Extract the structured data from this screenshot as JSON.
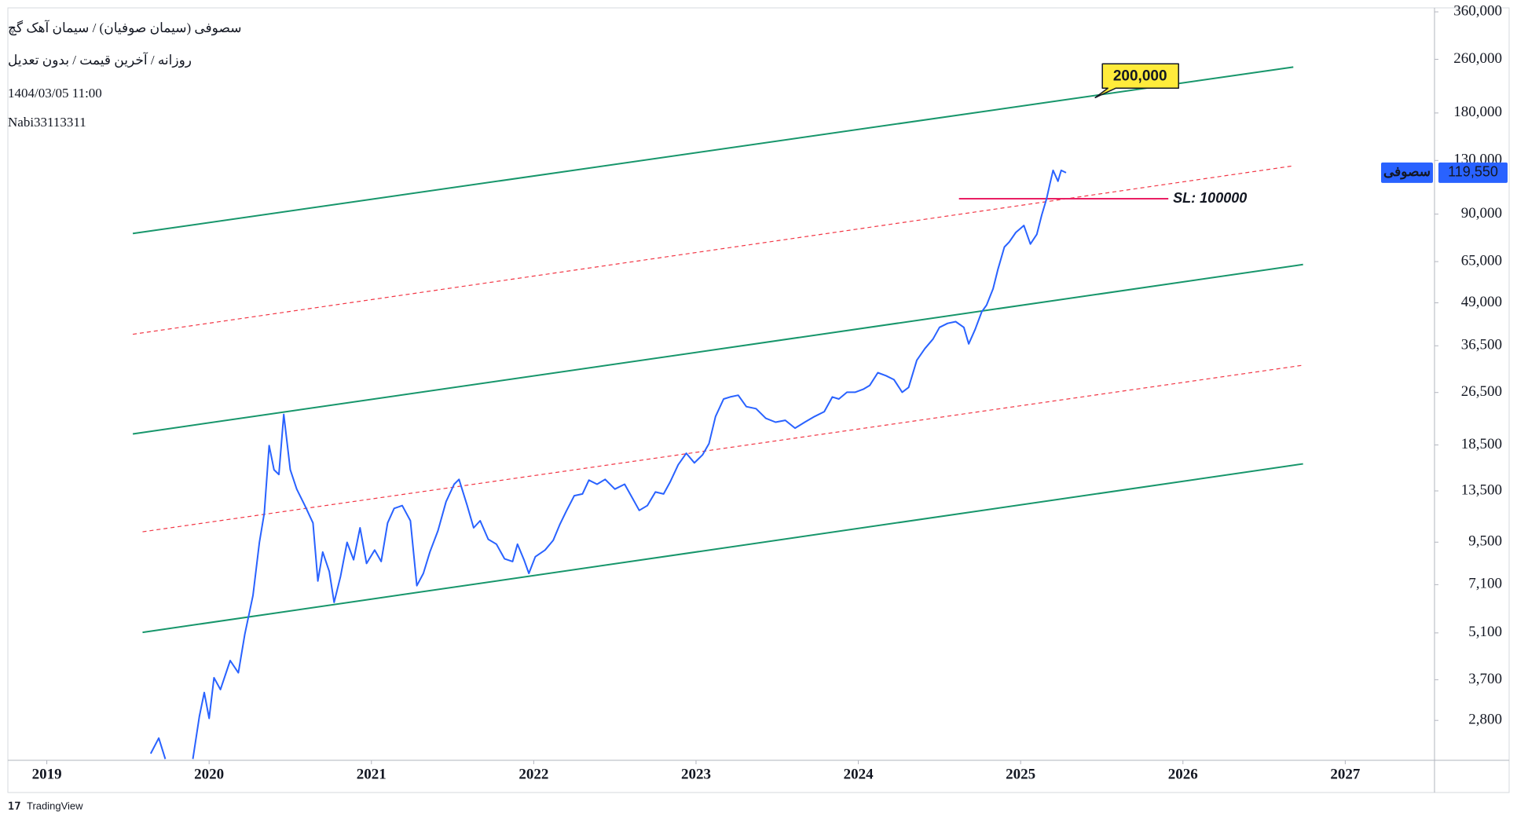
{
  "chart_data": {
    "type": "line",
    "title": "سصوفی (سیمان صوفیان) / سیمان آهک گچ",
    "subtitle": "روزانه / آخرین قیمت / بدون تعدیل",
    "timestamp": "1404/03/05 11:00",
    "author": "Nabi33113311",
    "footer": "TradingView",
    "log_scale": true,
    "grid": false,
    "xlim": [
      2018.76,
      2027.55
    ],
    "xticks": [
      2019,
      2020,
      2021,
      2022,
      2023,
      2024,
      2025,
      2026,
      2027
    ],
    "ylim": [
      2130,
      370000
    ],
    "yticks": [
      {
        "value": 2800,
        "label": "2,800"
      },
      {
        "value": 3700,
        "label": "3,700"
      },
      {
        "value": 5100,
        "label": "5,100"
      },
      {
        "value": 7100,
        "label": "7,100"
      },
      {
        "value": 9500,
        "label": "9,500"
      },
      {
        "value": 13500,
        "label": "13,500"
      },
      {
        "value": 18500,
        "label": "18,500"
      },
      {
        "value": 26500,
        "label": "26,500"
      },
      {
        "value": 36500,
        "label": "36,500"
      },
      {
        "value": 49000,
        "label": "49,000"
      },
      {
        "value": 65000,
        "label": "65,000"
      },
      {
        "value": 90000,
        "label": "90,000"
      },
      {
        "value": 130000,
        "label": "130,000"
      },
      {
        "value": 180000,
        "label": "180,000"
      },
      {
        "value": 260000,
        "label": "260,000"
      },
      {
        "value": 360000,
        "label": "360,000"
      }
    ],
    "series": [
      {
        "name": "سصوفی",
        "color": "#2962ff",
        "last_value_label": "119,550",
        "x": [
          2019.64,
          2019.69,
          2019.73,
          2019.8,
          2019.9,
          2019.94,
          2019.97,
          2020.0,
          2020.03,
          2020.07,
          2020.13,
          2020.18,
          2020.22,
          2020.27,
          2020.31,
          2020.34,
          2020.37,
          2020.4,
          2020.43,
          2020.46,
          2020.5,
          2020.54,
          2020.59,
          2020.64,
          2020.67,
          2020.7,
          2020.74,
          2020.77,
          2020.81,
          2020.85,
          2020.89,
          2020.93,
          2020.97,
          2021.02,
          2021.06,
          2021.1,
          2021.14,
          2021.19,
          2021.24,
          2021.28,
          2021.32,
          2021.36,
          2021.41,
          2021.46,
          2021.51,
          2021.54,
          2021.59,
          2021.63,
          2021.67,
          2021.72,
          2021.77,
          2021.82,
          2021.87,
          2021.9,
          2021.94,
          2021.97,
          2022.01,
          2022.07,
          2022.12,
          2022.16,
          2022.2,
          2022.25,
          2022.3,
          2022.34,
          2022.39,
          2022.44,
          2022.5,
          2022.56,
          2022.61,
          2022.65,
          2022.7,
          2022.75,
          2022.8,
          2022.84,
          2022.89,
          2022.94,
          2022.99,
          2023.04,
          2023.08,
          2023.12,
          2023.17,
          2023.21,
          2023.26,
          2023.31,
          2023.37,
          2023.43,
          2023.49,
          2023.55,
          2023.61,
          2023.67,
          2023.73,
          2023.79,
          2023.84,
          2023.88,
          2023.93,
          2023.98,
          2024.03,
          2024.07,
          2024.12,
          2024.17,
          2024.22,
          2024.27,
          2024.31,
          2024.36,
          2024.41,
          2024.46,
          2024.5,
          2024.55,
          2024.6,
          2024.65,
          2024.68,
          2024.72,
          2024.76,
          2024.79,
          2024.83,
          2024.86,
          2024.9,
          2024.93,
          2024.97,
          2025.02,
          2025.06,
          2025.1,
          2025.13,
          2025.16,
          2025.18,
          2025.2,
          2025.23,
          2025.25,
          2025.28
        ],
        "values": [
          2230,
          2480,
          2150,
          null,
          2150,
          2880,
          3390,
          2840,
          3750,
          3460,
          4220,
          3880,
          5050,
          6590,
          9490,
          11590,
          18420,
          15600,
          15110,
          22800,
          15600,
          13670,
          12210,
          10840,
          7280,
          8880,
          7780,
          6290,
          7520,
          9490,
          8420,
          10480,
          8210,
          9000,
          8320,
          10840,
          11970,
          12210,
          11000,
          7050,
          7670,
          8880,
          10280,
          12540,
          14130,
          14610,
          12210,
          10480,
          11000,
          9690,
          9370,
          8480,
          8320,
          9370,
          8420,
          7670,
          8600,
          9000,
          9620,
          10700,
          11730,
          13060,
          13220,
          14530,
          14130,
          14610,
          13670,
          14130,
          12800,
          11810,
          12210,
          13400,
          13220,
          14330,
          16150,
          17470,
          16360,
          17270,
          18680,
          22480,
          25340,
          25700,
          26010,
          24050,
          23720,
          22200,
          21620,
          21900,
          20750,
          21620,
          22480,
          23240,
          25700,
          25340,
          26550,
          26550,
          27100,
          27800,
          30350,
          29740,
          28930,
          26550,
          27440,
          33040,
          35810,
          38220,
          41410,
          42560,
          43070,
          41410,
          36990,
          40850,
          46030,
          48220,
          53980,
          61680,
          71820,
          74340,
          79350,
          83220,
          73300,
          78370,
          89380,
          100000,
          110600,
          121500,
          112800,
          121500,
          119550
        ]
      }
    ],
    "lines": [
      {
        "x": [
          2019.53,
          2026.68
        ],
        "values": [
          78800,
          246600
        ],
        "color": "#17966b",
        "style": "solid"
      },
      {
        "x": [
          2019.53,
          2026.74
        ],
        "values": [
          19950,
          63700
        ],
        "color": "#17966b",
        "style": "solid"
      },
      {
        "x": [
          2019.59,
          2026.74
        ],
        "values": [
          5120,
          16250
        ],
        "color": "#17966b",
        "style": "solid"
      },
      {
        "x": [
          2019.53,
          2026.68
        ],
        "values": [
          39500,
          125300
        ],
        "color": "#f23645",
        "style": "dashed"
      },
      {
        "x": [
          2019.59,
          2026.74
        ],
        "values": [
          10200,
          31950
        ],
        "color": "#f23645",
        "style": "dashed"
      },
      {
        "x": [
          2024.62,
          2025.91
        ],
        "values": [
          100000,
          100000
        ],
        "color": "#e91e63",
        "style": "solid",
        "label": "SL: 100000",
        "label_color": "#9c27b0"
      }
    ],
    "annotations": [
      {
        "text": "200,000",
        "x": 2025.46,
        "value": 200000,
        "color": "#ffeb3b"
      }
    ]
  }
}
